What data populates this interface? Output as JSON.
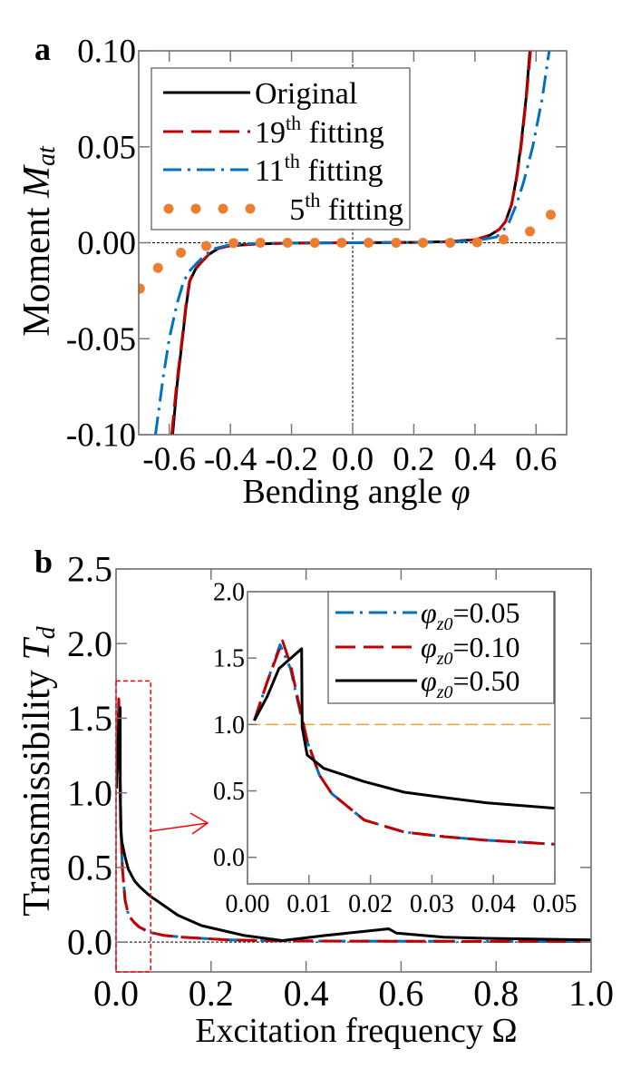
{
  "chart_data": [
    {
      "panel_label": "a",
      "type": "line",
      "xlabel": "Bending angle ",
      "xlabel_symbol": "φ",
      "ylabel": "Moment ",
      "ylabel_symbol": "M",
      "ylabel_subscript": "at",
      "xlim": [
        -0.7,
        0.7
      ],
      "ylim": [
        -0.1,
        0.1
      ],
      "xticks": [
        -0.6,
        -0.4,
        -0.2,
        0.0,
        0.2,
        0.4,
        0.6
      ],
      "xtick_labels": [
        "-0.6",
        "-0.4",
        "-0.2",
        "0.0",
        "0.2",
        "0.4",
        "0.6"
      ],
      "yticks": [
        -0.1,
        -0.05,
        0.0,
        0.05,
        0.1
      ],
      "ytick_labels": [
        "-0.10",
        "-0.05",
        "0.00",
        "0.05",
        "0.10"
      ],
      "zero_lines": true,
      "legend_position": "upper-left",
      "series": [
        {
          "name": "Original",
          "name_base": "Original",
          "name_sup": "",
          "name_rest": "",
          "color": "#000000",
          "style": "solid",
          "x": [
            -0.589,
            -0.575,
            -0.557,
            -0.545,
            -0.533,
            -0.515,
            -0.494,
            -0.47,
            -0.44,
            -0.4,
            -0.3,
            -0.2,
            0,
            0.2,
            0.3,
            0.4,
            0.45,
            0.48,
            0.5,
            0.52,
            0.535,
            0.55,
            0.567,
            0.58
          ],
          "y": [
            -0.1,
            -0.075,
            -0.05,
            -0.033,
            -0.02,
            -0.014,
            -0.01,
            -0.006,
            -0.003,
            -0.0015,
            -0.0005,
            -0.0002,
            0,
            0.0002,
            0.0005,
            0.0015,
            0.004,
            0.007,
            0.011,
            0.02,
            0.033,
            0.05,
            0.075,
            0.1
          ]
        },
        {
          "name": "19th fitting",
          "name_base": "19",
          "name_sup": "th",
          "name_rest": " fitting",
          "color": "#c00000",
          "style": "dashed",
          "x": [
            -0.592,
            -0.577,
            -0.558,
            -0.546,
            -0.534,
            -0.516,
            -0.495,
            -0.47,
            -0.44,
            -0.4,
            -0.3,
            -0.2,
            0,
            0.2,
            0.3,
            0.4,
            0.45,
            0.48,
            0.5,
            0.52,
            0.536,
            0.551,
            0.568,
            0.582
          ],
          "y": [
            -0.1,
            -0.075,
            -0.05,
            -0.033,
            -0.02,
            -0.014,
            -0.01,
            -0.006,
            -0.003,
            -0.0015,
            -0.0005,
            -0.0002,
            0,
            0.0002,
            0.0005,
            0.0015,
            0.004,
            0.007,
            0.011,
            0.02,
            0.033,
            0.05,
            0.075,
            0.1
          ]
        },
        {
          "name": "11th fitting",
          "name_base": "11",
          "name_sup": "th",
          "name_rest": " fitting",
          "color": "#0070c0",
          "style": "dashdot",
          "x": [
            -0.645,
            -0.62,
            -0.6,
            -0.575,
            -0.553,
            -0.53,
            -0.506,
            -0.48,
            -0.45,
            -0.4,
            -0.3,
            0,
            0.3,
            0.4,
            0.47,
            0.49,
            0.51,
            0.536,
            0.56,
            0.589,
            0.62,
            0.643
          ],
          "y": [
            -0.1,
            -0.07,
            -0.05,
            -0.032,
            -0.02,
            -0.014,
            -0.01,
            -0.006,
            -0.003,
            -0.001,
            -0.0003,
            0,
            0.0003,
            0.001,
            0.003,
            0.006,
            0.01,
            0.02,
            0.032,
            0.05,
            0.075,
            0.1
          ]
        },
        {
          "name": "5th fitting",
          "name_base": "5",
          "name_sup": "th",
          "name_rest": " fitting",
          "color": "#ed7d31",
          "style": "dotted-markers",
          "x": [
            -0.696,
            -0.637,
            -0.562,
            -0.479,
            -0.39,
            -0.302,
            -0.213,
            -0.124,
            -0.036,
            0.052,
            0.142,
            0.23,
            0.319,
            0.407,
            0.494,
            0.58,
            0.648
          ],
          "y": [
            -0.0239,
            -0.0131,
            -0.0052,
            -0.0017,
            -0.0002,
            0,
            0,
            0,
            0,
            0,
            0,
            0,
            0,
            0.0002,
            0.0017,
            0.0059,
            0.0146
          ]
        }
      ]
    },
    {
      "panel_label": "b",
      "type": "line",
      "xlabel": "Excitation frequency Ω",
      "ylabel": "Transmissibility ",
      "ylabel_symbol": "T",
      "ylabel_subscript": "d",
      "xlim": [
        0,
        1.0
      ],
      "ylim": [
        -0.2,
        2.5
      ],
      "xticks": [
        0,
        0.2,
        0.4,
        0.6,
        0.8,
        1.0
      ],
      "xtick_labels": [
        "0.0",
        "0.2",
        "0.4",
        "0.6",
        "0.8",
        "1.0"
      ],
      "yticks": [
        0,
        0.5,
        1.0,
        1.5,
        2.0,
        2.5
      ],
      "ytick_labels": [
        "0.0",
        "0.5",
        "1.0",
        "1.5",
        "2.0",
        "2.5"
      ],
      "zero_line": true,
      "zoom_box": {
        "xlim": [
          0,
          0.05
        ],
        "ylim": [
          -0.2,
          1.75
        ],
        "color": "#ff0000"
      },
      "series": [
        {
          "name": "φz0=0.05",
          "value": "=0.05",
          "color": "#0070c0",
          "style": "dashdot",
          "x": [
            0.0011,
            0.0032,
            0.0053,
            0.007,
            0.0081,
            0.0097,
            0.0117,
            0.0137,
            0.019,
            0.0255,
            0.032,
            0.0385,
            0.0495,
            0.07,
            0.1,
            0.14,
            0.24,
            0.35,
            0.5,
            0.7,
            1.0
          ],
          "y": [
            1.03,
            1.32,
            1.6,
            1.42,
            1.19,
            0.87,
            0.62,
            0.48,
            0.28,
            0.19,
            0.155,
            0.13,
            0.1,
            0.066,
            0.045,
            0.032,
            0.014,
            0.008,
            0.006,
            0.005,
            0.004
          ]
        },
        {
          "name": "φz0=0.10",
          "value": "=0.10",
          "color": "#c00000",
          "style": "dashed",
          "x": [
            0.0011,
            0.0032,
            0.0057,
            0.007,
            0.0081,
            0.0097,
            0.0117,
            0.0137,
            0.019,
            0.0255,
            0.032,
            0.0385,
            0.0495,
            0.07,
            0.1,
            0.14,
            0.24,
            0.35,
            0.5,
            0.7,
            1.0
          ],
          "y": [
            1.03,
            1.32,
            1.63,
            1.45,
            1.21,
            0.88,
            0.62,
            0.48,
            0.28,
            0.19,
            0.155,
            0.13,
            0.1,
            0.066,
            0.045,
            0.032,
            0.014,
            0.008,
            0.006,
            0.005,
            0.004
          ]
        },
        {
          "name": "φz0=0.50",
          "value": "=0.50",
          "color": "#000000",
          "style": "solid",
          "x": [
            0.0011,
            0.0032,
            0.0051,
            0.0088,
            0.0089,
            0.0097,
            0.0124,
            0.019,
            0.0255,
            0.032,
            0.039,
            0.05,
            0.071,
            0.13,
            0.18,
            0.27,
            0.35,
            0.44,
            0.574,
            0.59,
            0.69,
            0.78,
            1.0
          ],
          "y": [
            1.03,
            1.21,
            1.42,
            1.57,
            0.98,
            0.77,
            0.67,
            0.57,
            0.49,
            0.45,
            0.41,
            0.37,
            0.31,
            0.18,
            0.11,
            0.044,
            0.01,
            0.044,
            0.089,
            0.06,
            0.032,
            0.025,
            0.014
          ]
        }
      ],
      "inset": {
        "xlim": [
          0,
          0.05
        ],
        "ylim": [
          -0.2,
          2.0
        ],
        "xticks": [
          0,
          0.01,
          0.02,
          0.03,
          0.04,
          0.05
        ],
        "xtick_labels": [
          "0.00",
          "0.01",
          "0.02",
          "0.03",
          "0.04",
          "0.05"
        ],
        "yticks": [
          0,
          0.5,
          1.0,
          1.5,
          2.0
        ],
        "ytick_labels": [
          "0.0",
          "0.5",
          "1.0",
          "1.5",
          "2.0"
        ],
        "reference_line": {
          "y": 1.0,
          "color": "#f0a030",
          "style": "dashed"
        },
        "legend_position": "upper-right",
        "legend_symbol": "φ",
        "legend_subscript": "z0"
      }
    }
  ]
}
